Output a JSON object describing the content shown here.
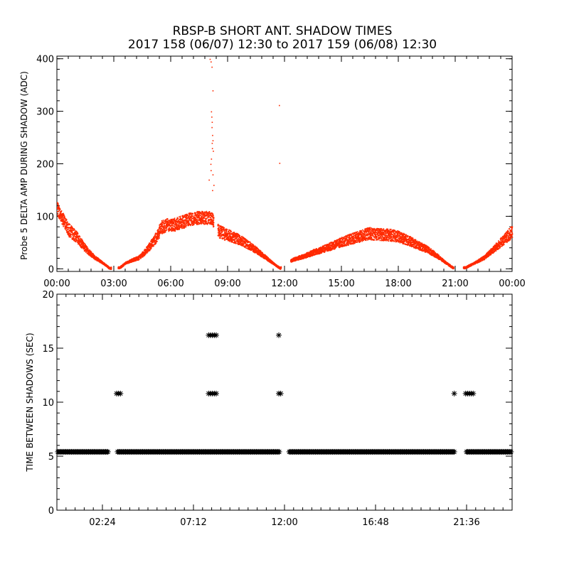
{
  "title": "RBSP-B SHORT ANT. SHADOW TIMES",
  "subtitle": "2017 158 (06/07) 12:30 to 2017 159 (06/08) 12:30",
  "colors": {
    "series1": "#ff2a00",
    "series2": "#000000",
    "axis": "#000000",
    "background": "#ffffff"
  },
  "chart_data": [
    {
      "type": "scatter",
      "ylabel": "Probe 5 DELTA AMP DURING SHADOW (ADC)",
      "xlabel": "",
      "xlim": [
        0,
        24
      ],
      "ylim": [
        -5,
        405
      ],
      "x_tick_labels": [
        "00:00",
        "03:00",
        "06:00",
        "09:00",
        "12:00",
        "15:00",
        "18:00",
        "21:00",
        "00:00"
      ],
      "x_tick_values": [
        0,
        3,
        6,
        9,
        12,
        15,
        18,
        21,
        24
      ],
      "y_tick_values": [
        0,
        100,
        200,
        300,
        400
      ],
      "grid": false,
      "series": [
        {
          "color": "#ff2a00",
          "envelope": [
            [
              0.0,
              115
            ],
            [
              0.3,
              95
            ],
            [
              0.6,
              75
            ],
            [
              1.0,
              62
            ],
            [
              1.3,
              48
            ],
            [
              1.6,
              35
            ],
            [
              2.0,
              22
            ],
            [
              2.4,
              12
            ],
            [
              2.75,
              2
            ],
            [
              3.3,
              3
            ],
            [
              3.6,
              12
            ],
            [
              4.0,
              18
            ],
            [
              4.3,
              22
            ],
            [
              4.6,
              32
            ],
            [
              4.9,
              45
            ],
            [
              5.2,
              60
            ],
            [
              5.5,
              80
            ],
            [
              5.8,
              85
            ],
            [
              6.2,
              85
            ],
            [
              6.6,
              90
            ],
            [
              7.0,
              95
            ],
            [
              7.4,
              98
            ],
            [
              7.8,
              98
            ],
            [
              8.15,
              98
            ],
            [
              8.5,
              72
            ],
            [
              9.0,
              65
            ],
            [
              9.5,
              58
            ],
            [
              10.0,
              48
            ],
            [
              10.5,
              36
            ],
            [
              11.0,
              22
            ],
            [
              11.5,
              8
            ],
            [
              11.75,
              2
            ],
            [
              12.4,
              18
            ],
            [
              13.0,
              25
            ],
            [
              13.5,
              32
            ],
            [
              14.0,
              38
            ],
            [
              14.5,
              45
            ],
            [
              15.0,
              52
            ],
            [
              15.5,
              58
            ],
            [
              16.0,
              63
            ],
            [
              16.4,
              68
            ],
            [
              16.8,
              67
            ],
            [
              17.2,
              66
            ],
            [
              17.6,
              65
            ],
            [
              18.0,
              62
            ],
            [
              18.5,
              55
            ],
            [
              19.0,
              46
            ],
            [
              19.5,
              38
            ],
            [
              20.0,
              26
            ],
            [
              20.5,
              12
            ],
            [
              20.85,
              3
            ],
            [
              21.5,
              3
            ],
            [
              22.0,
              12
            ],
            [
              22.5,
              22
            ],
            [
              23.0,
              38
            ],
            [
              23.5,
              55
            ],
            [
              24.0,
              72
            ]
          ],
          "band_width": 25,
          "spikes": [
            [
              8.05,
              400
            ],
            [
              8.1,
              395
            ],
            [
              8.15,
              385
            ],
            [
              8.2,
              340
            ],
            [
              8.12,
              300
            ],
            [
              8.14,
              290
            ],
            [
              8.16,
              280
            ],
            [
              8.15,
              270
            ],
            [
              8.18,
              255
            ],
            [
              8.2,
              245
            ],
            [
              8.16,
              240
            ],
            [
              8.17,
              230
            ],
            [
              8.22,
              225
            ],
            [
              8.12,
              210
            ],
            [
              8.09,
              200
            ],
            [
              8.1,
              188
            ],
            [
              8.2,
              180
            ],
            [
              8.0,
              170
            ],
            [
              8.25,
              160
            ],
            [
              8.18,
              150
            ],
            [
              11.7,
              312
            ],
            [
              11.72,
              202
            ]
          ]
        }
      ]
    },
    {
      "type": "scatter",
      "ylabel": "TIME BETWEEN SHADOWS (SEC)",
      "xlabel": "",
      "xlim": [
        0,
        24
      ],
      "ylim": [
        0,
        20
      ],
      "x_tick_labels": [
        "02:24",
        "07:12",
        "12:00",
        "16:48",
        "21:36"
      ],
      "x_tick_values": [
        2.4,
        7.2,
        12.0,
        16.8,
        21.6
      ],
      "y_tick_values": [
        0,
        5,
        10,
        15,
        20
      ],
      "grid": false,
      "series": [
        {
          "color": "#000000",
          "marker": "asterisk",
          "baseline_value": 5.4,
          "baseline_ranges": [
            [
              0.05,
              2.7
            ],
            [
              3.2,
              11.75
            ],
            [
              12.25,
              21.0
            ],
            [
              21.6,
              23.95
            ]
          ],
          "points": [
            [
              3.15,
              10.8
            ],
            [
              3.25,
              10.8
            ],
            [
              3.35,
              10.8
            ],
            [
              8.0,
              16.2
            ],
            [
              8.1,
              16.2
            ],
            [
              8.2,
              16.2
            ],
            [
              8.3,
              16.2
            ],
            [
              8.4,
              16.2
            ],
            [
              8.0,
              10.8
            ],
            [
              8.1,
              10.8
            ],
            [
              8.2,
              10.8
            ],
            [
              8.3,
              10.8
            ],
            [
              8.4,
              10.8
            ],
            [
              11.7,
              16.2
            ],
            [
              11.7,
              10.8
            ],
            [
              11.8,
              10.8
            ],
            [
              20.95,
              10.8
            ],
            [
              21.55,
              10.8
            ],
            [
              21.65,
              10.8
            ],
            [
              21.75,
              10.8
            ],
            [
              21.85,
              10.8
            ],
            [
              21.95,
              10.8
            ]
          ]
        }
      ]
    }
  ]
}
